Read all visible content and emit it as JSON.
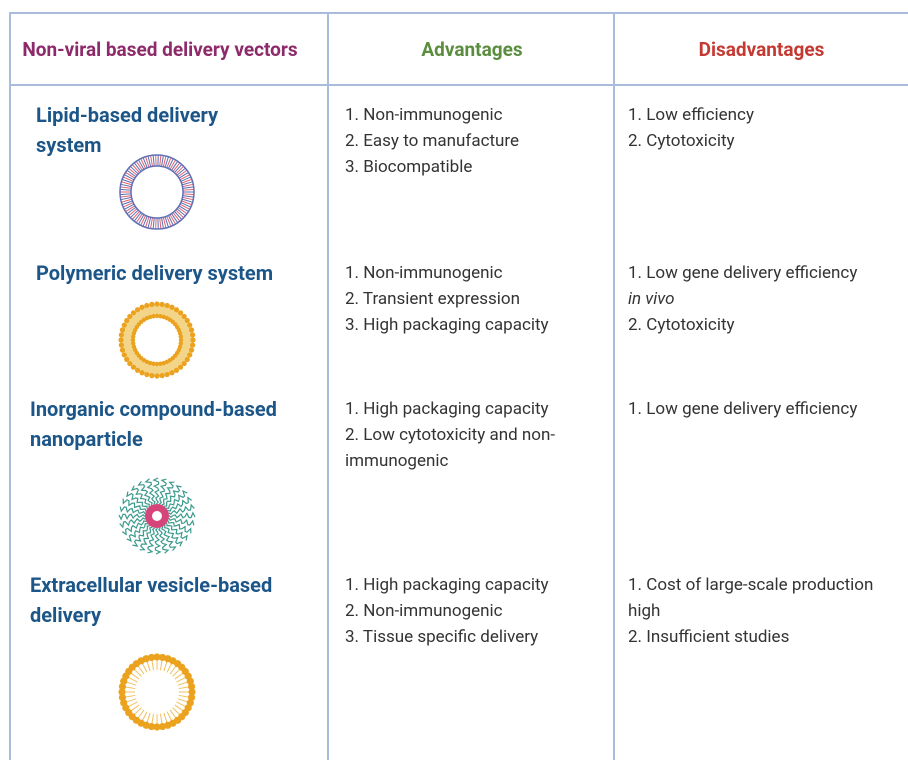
{
  "header": [
    "Non-viral based delivery vectors",
    "Advantages",
    "Disadvantages"
  ],
  "rows": [
    {
      "name": "Lipid-based delivery system",
      "icon": "lipid",
      "advantages": [
        "1. Non-immunogenic",
        "2. Easy to manufacture",
        "3. Biocompatible"
      ],
      "disadvantages": [
        "1. Low efficiency",
        "2. Cytotoxicity"
      ]
    },
    {
      "name": "Polymeric delivery system",
      "icon": "polymer",
      "advantages": [
        "1. Non-immunogenic",
        "2. Transient expression",
        "3. High packaging capacity"
      ],
      "disadvantages": [
        "1. Low gene delivery efficiency",
        "in vivo",
        "2. Cytotoxicity"
      ],
      "italic_disadvantages": [
        1
      ]
    },
    {
      "name": "Inorganic compound-based nanoparticle",
      "icon": "inorganic",
      "advantages": [
        "1. High packaging capacity",
        "2. Low cytotoxicity and non-immunogenic"
      ],
      "disadvantages": [
        "1. Low gene delivery efficiency"
      ]
    },
    {
      "name": "Extracellular vesicle-based delivery",
      "icon": "vesicle",
      "advantages": [
        "1. High packaging capacity",
        "2. Non-immunogenic",
        "3. Tissue specific delivery"
      ],
      "disadvantages": [
        "1. Cost of large-scale production high",
        "2. Insufficient studies"
      ]
    }
  ]
}
